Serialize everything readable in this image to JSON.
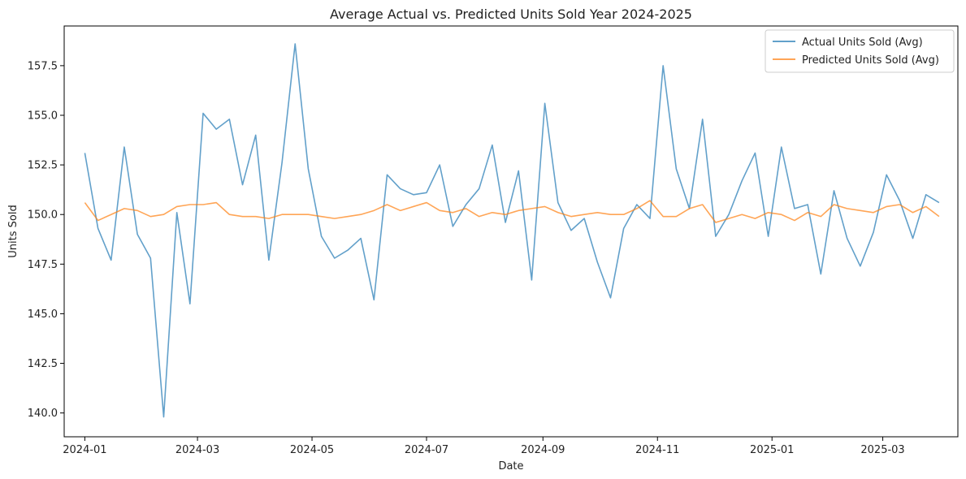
{
  "chart_data": {
    "type": "line",
    "title": "Average Actual vs. Predicted Units Sold Year 2024-2025",
    "xlabel": "Date",
    "ylabel": "Units Sold",
    "xlim": [
      "2023-12-21",
      "2025-04-10"
    ],
    "ylim": [
      138.8,
      159.5
    ],
    "x_ticks": [
      "2024-01",
      "2024-03",
      "2024-05",
      "2024-07",
      "2024-09",
      "2024-11",
      "2025-01",
      "2025-03"
    ],
    "y_ticks": [
      140.0,
      142.5,
      145.0,
      147.5,
      150.0,
      152.5,
      155.0,
      157.5
    ],
    "grid": false,
    "legend_position": "top-right",
    "x": [
      "2024-01-01",
      "2024-01-08",
      "2024-01-15",
      "2024-01-22",
      "2024-01-29",
      "2024-02-05",
      "2024-02-12",
      "2024-02-19",
      "2024-02-26",
      "2024-03-04",
      "2024-03-11",
      "2024-03-18",
      "2024-03-25",
      "2024-04-01",
      "2024-04-08",
      "2024-04-15",
      "2024-04-22",
      "2024-04-29",
      "2024-05-06",
      "2024-05-13",
      "2024-05-20",
      "2024-05-27",
      "2024-06-03",
      "2024-06-10",
      "2024-06-17",
      "2024-06-24",
      "2024-07-01",
      "2024-07-08",
      "2024-07-15",
      "2024-07-22",
      "2024-07-29",
      "2024-08-05",
      "2024-08-12",
      "2024-08-19",
      "2024-08-26",
      "2024-09-02",
      "2024-09-09",
      "2024-09-16",
      "2024-09-23",
      "2024-09-30",
      "2024-10-07",
      "2024-10-14",
      "2024-10-21",
      "2024-10-28",
      "2024-11-04",
      "2024-11-11",
      "2024-11-18",
      "2024-11-25",
      "2024-12-02",
      "2024-12-09",
      "2024-12-16",
      "2024-12-23",
      "2024-12-30",
      "2025-01-06",
      "2025-01-13",
      "2025-01-20",
      "2025-01-27",
      "2025-02-03",
      "2025-02-10",
      "2025-02-17",
      "2025-02-24",
      "2025-03-03",
      "2025-03-10",
      "2025-03-17",
      "2025-03-24",
      "2025-03-31"
    ],
    "series": [
      {
        "name": "Actual Units Sold (Avg)",
        "color": "#1f77b4",
        "values": [
          153.1,
          149.3,
          147.7,
          153.4,
          149.0,
          147.8,
          139.8,
          150.1,
          145.5,
          155.1,
          154.3,
          154.8,
          151.5,
          154.0,
          147.7,
          152.6,
          158.6,
          152.3,
          148.9,
          147.8,
          148.2,
          148.8,
          145.7,
          152.0,
          151.3,
          151.0,
          151.1,
          152.5,
          149.4,
          150.5,
          151.3,
          153.5,
          149.6,
          152.2,
          146.7,
          155.6,
          150.6,
          149.2,
          149.8,
          147.6,
          145.8,
          149.3,
          150.5,
          149.8,
          157.5,
          152.3,
          150.3,
          154.8,
          148.9,
          150.0,
          151.7,
          153.1,
          148.9,
          153.4,
          150.3,
          150.5,
          147.0,
          151.2,
          148.8,
          147.4,
          149.1,
          152.0,
          150.7,
          148.8,
          151.0,
          150.6
        ]
      },
      {
        "name": "Predicted Units Sold (Avg)",
        "color": "#ff7f0e",
        "values": [
          150.6,
          149.7,
          150.0,
          150.3,
          150.2,
          149.9,
          150.0,
          150.4,
          150.5,
          150.5,
          150.6,
          150.0,
          149.9,
          149.9,
          149.8,
          150.0,
          150.0,
          150.0,
          149.9,
          149.8,
          149.9,
          150.0,
          150.2,
          150.5,
          150.2,
          150.4,
          150.6,
          150.2,
          150.1,
          150.3,
          149.9,
          150.1,
          150.0,
          150.2,
          150.3,
          150.4,
          150.1,
          149.9,
          150.0,
          150.1,
          150.0,
          150.0,
          150.3,
          150.7,
          149.9,
          149.9,
          150.3,
          150.5,
          149.6,
          149.8,
          150.0,
          149.8,
          150.1,
          150.0,
          149.7,
          150.1,
          149.9,
          150.5,
          150.3,
          150.2,
          150.1,
          150.4,
          150.5,
          150.1,
          150.4,
          149.9
        ]
      }
    ]
  }
}
